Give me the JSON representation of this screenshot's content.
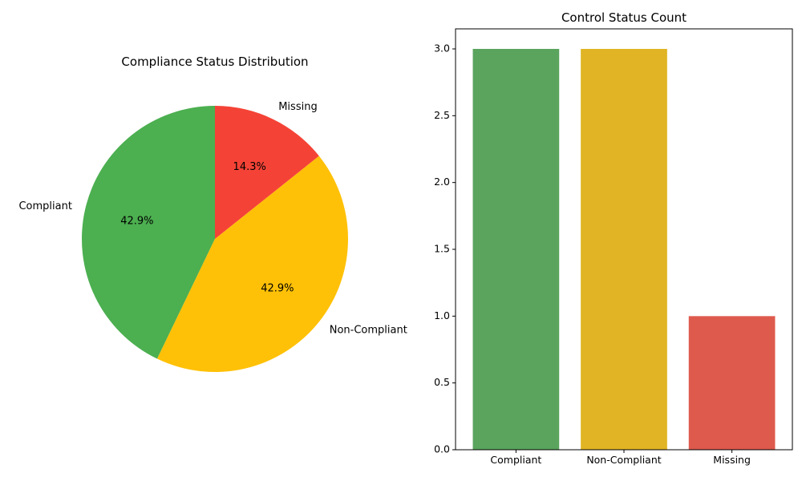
{
  "colors": {
    "compliant": "#4caf50",
    "non_compliant": "#ffc107",
    "missing": "#f44336",
    "bar_compliant": "#5aa45d",
    "bar_non_compliant": "#e0b424",
    "bar_missing": "#de5a4d"
  },
  "chart_data": [
    {
      "type": "pie",
      "title": "Compliance Status Distribution",
      "labels": [
        "Compliant",
        "Non-Compliant",
        "Missing"
      ],
      "values": [
        3,
        3,
        1
      ],
      "percent_labels": [
        "42.9%",
        "42.9%",
        "14.3%"
      ],
      "start_angle_deg": 90,
      "direction": "counterclockwise"
    },
    {
      "type": "bar",
      "title": "Control Status Count",
      "categories": [
        "Compliant",
        "Non-Compliant",
        "Missing"
      ],
      "values": [
        3,
        3,
        1
      ],
      "xlabel": "",
      "ylabel": "",
      "ylim": [
        0,
        3.15
      ],
      "yticks": [
        "0.0",
        "0.5",
        "1.0",
        "1.5",
        "2.0",
        "2.5",
        "3.0"
      ],
      "grid": false
    }
  ]
}
